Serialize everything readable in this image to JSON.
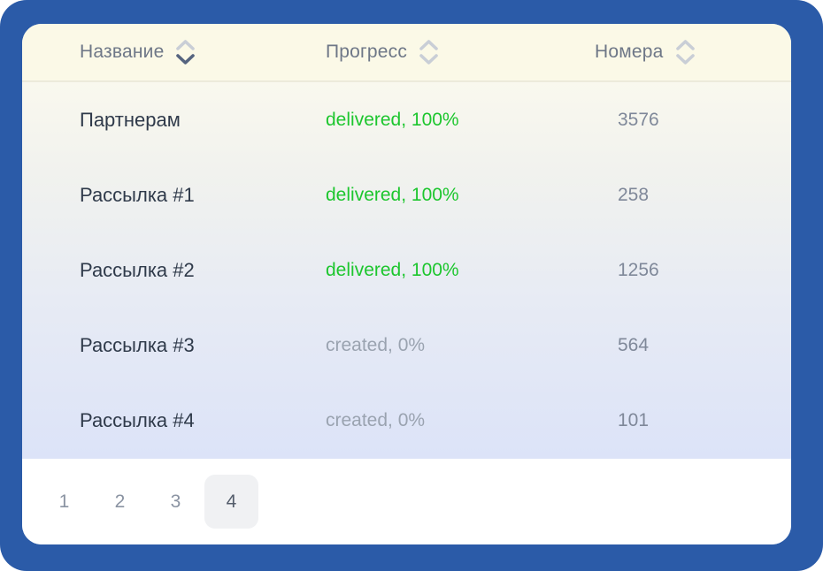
{
  "table": {
    "columns": [
      {
        "label": "Название",
        "sort": "desc"
      },
      {
        "label": "Прогресс",
        "sort": "none"
      },
      {
        "label": "Номера",
        "sort": "none"
      }
    ],
    "rows": [
      {
        "name": "Партнерам",
        "progress": "delivered, 100%",
        "status": "delivered",
        "numbers": "3576"
      },
      {
        "name": "Рассылка #1",
        "progress": "delivered, 100%",
        "status": "delivered",
        "numbers": "258"
      },
      {
        "name": "Рассылка #2",
        "progress": "delivered, 100%",
        "status": "delivered",
        "numbers": "1256"
      },
      {
        "name": "Рассылка #3",
        "progress": "created, 0%",
        "status": "created",
        "numbers": "564"
      },
      {
        "name": "Рассылка #4",
        "progress": "created, 0%",
        "status": "created",
        "numbers": "101"
      }
    ]
  },
  "pagination": {
    "pages": [
      "1",
      "2",
      "3",
      "4"
    ],
    "active": "4"
  },
  "colors": {
    "frame_blue": "#2b5ba8",
    "header_bg": "#fbf9e7",
    "delivered_green": "#1dc62e",
    "created_gray": "#9aa3b0",
    "gradient_bottom": "#dce3f8"
  }
}
